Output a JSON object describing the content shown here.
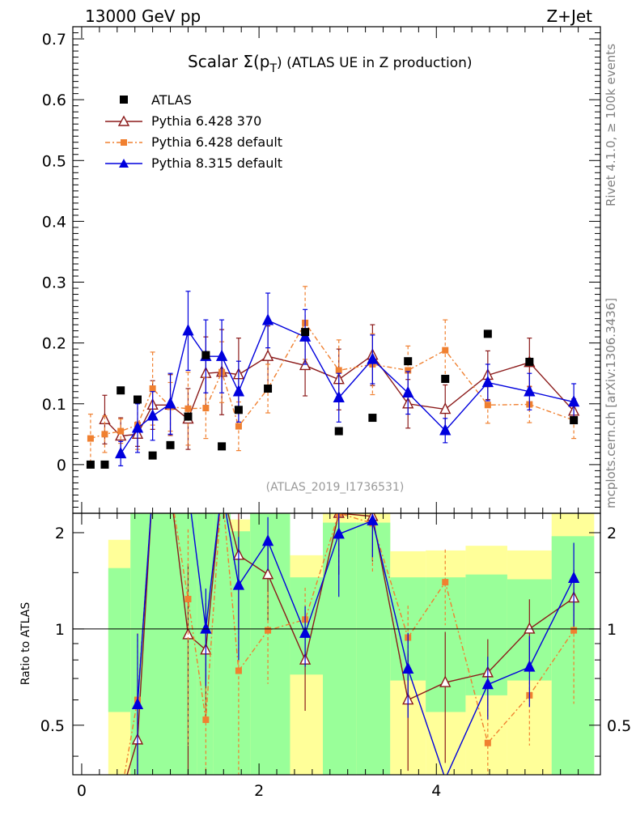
{
  "header": {
    "left": "13000 GeV pp",
    "right": "Z+Jet"
  },
  "side_labels": {
    "rivet": "Rivet 4.1.0, ≥ 100k events",
    "mcplots": "mcplots.cern.ch [arXiv:1306.3436]"
  },
  "chart_data": {
    "type": "line",
    "title": "Scalar Σ(p_T) (ATLAS UE in Z production)",
    "title_main": "Scalar Σ(p",
    "title_sub": "T",
    "title_rest": ") (ATLAS UE in Z production)",
    "analysis_id": "(ATLAS_2019_I1736531)",
    "ratio_ylabel": "Ratio to ATLAS",
    "xlim": [
      -0.1,
      5.85
    ],
    "ylim": [
      -0.08,
      0.72
    ],
    "ratio_ylim": [
      0.35,
      2.3
    ],
    "x_ticks": [
      "0",
      "2",
      "4"
    ],
    "y_ticks": [
      "0",
      "0.1",
      "0.2",
      "0.3",
      "0.4",
      "0.5",
      "0.6",
      "0.7"
    ],
    "ratio_ticks": [
      "0.5",
      "1",
      "2"
    ],
    "legend": [
      "ATLAS",
      "Pythia 6.428 370",
      "Pythia 6.428 default",
      "Pythia 8.315 default"
    ],
    "colors": {
      "atlas": "#000000",
      "p370": "#8b1a1a",
      "pdef": "#f08030",
      "p8": "#0000dd",
      "band_inner": "#99ff99",
      "band_outer": "#ffff99"
    },
    "x": [
      0.1,
      0.26,
      0.44,
      0.63,
      0.8,
      1.0,
      1.2,
      1.4,
      1.58,
      1.77,
      2.1,
      2.52,
      2.9,
      3.28,
      3.68,
      4.1,
      4.58,
      5.05,
      5.55
    ],
    "atlas": [
      0.0,
      0.0,
      0.122,
      0.107,
      0.015,
      0.032,
      0.079,
      0.18,
      0.03,
      0.09,
      0.125,
      0.218,
      0.055,
      0.077,
      0.17,
      0.141,
      0.215,
      0.169,
      0.073
    ],
    "series": [
      {
        "name": "Pythia 6.428 370",
        "key": "p370",
        "values": [
          null,
          0.074,
          0.047,
          0.05,
          0.098,
          0.098,
          0.075,
          0.15,
          0.152,
          0.148,
          0.178,
          0.163,
          0.14,
          0.18,
          0.1,
          0.091,
          0.147,
          0.168,
          0.088
        ],
        "errors": [
          null,
          0.04,
          0.03,
          0.02,
          0.04,
          0.05,
          0.05,
          0.06,
          0.07,
          0.06,
          0.05,
          0.05,
          0.05,
          0.05,
          0.04,
          0.04,
          0.04,
          0.04,
          0.02
        ],
        "ratio": [
          null,
          null,
          0.3,
          0.45,
          6.0,
          3.0,
          0.96,
          0.86,
          5.0,
          1.7,
          1.48,
          0.8,
          2.3,
          2.25,
          0.6,
          0.68,
          0.73,
          1.0,
          1.25
        ]
      },
      {
        "name": "Pythia 6.428 default",
        "key": "pdef",
        "values": [
          0.043,
          0.05,
          0.055,
          0.065,
          0.125,
          0.095,
          0.092,
          0.093,
          0.152,
          0.063,
          0.125,
          0.233,
          0.155,
          0.165,
          0.155,
          0.188,
          0.098,
          0.099,
          0.073
        ],
        "errors": [
          0.04,
          0.03,
          0.02,
          0.04,
          0.06,
          0.04,
          0.06,
          0.05,
          0.05,
          0.04,
          0.04,
          0.06,
          0.05,
          0.05,
          0.04,
          0.05,
          0.03,
          0.03,
          0.03
        ],
        "ratio": [
          null,
          null,
          0.3,
          0.6,
          6.0,
          3.0,
          1.24,
          0.52,
          5.0,
          0.74,
          0.99,
          1.07,
          2.3,
          2.14,
          0.94,
          1.4,
          0.44,
          0.62,
          0.99
        ]
      },
      {
        "name": "Pythia 8.315 default",
        "key": "p8",
        "values": [
          null,
          null,
          0.018,
          0.06,
          0.08,
          0.1,
          0.22,
          0.178,
          0.178,
          0.12,
          0.237,
          0.21,
          0.11,
          0.173,
          0.118,
          0.056,
          0.135,
          0.12,
          0.103
        ],
        "errors": [
          null,
          null,
          0.02,
          0.04,
          0.04,
          0.05,
          0.065,
          0.06,
          0.06,
          0.05,
          0.045,
          0.045,
          0.04,
          0.04,
          0.035,
          0.02,
          0.03,
          0.03,
          0.03
        ],
        "ratio": [
          null,
          null,
          null,
          0.58,
          6.0,
          3.0,
          6.0,
          1.0,
          6.0,
          1.37,
          1.88,
          0.97,
          1.98,
          2.18,
          0.75,
          0.34,
          0.67,
          0.76,
          1.44
        ]
      }
    ],
    "ratio_bands": [
      {
        "x0": 0.3,
        "x1": 0.55,
        "inner": [
          0.55,
          1.55
        ],
        "outer": [
          0.3,
          1.9
        ]
      },
      {
        "x0": 0.55,
        "x1": 1.3,
        "inner": [
          0.3,
          2.3
        ],
        "outer": [
          0.3,
          2.3
        ]
      },
      {
        "x0": 1.3,
        "x1": 1.48,
        "inner": [
          0.3,
          2.3
        ],
        "outer": [
          0.3,
          2.3
        ]
      },
      {
        "x0": 1.48,
        "x1": 1.68,
        "inner": [
          0.3,
          2.3
        ],
        "outer": [
          0.3,
          2.3
        ]
      },
      {
        "x0": 1.68,
        "x1": 1.9,
        "inner": [
          0.3,
          2.02
        ],
        "outer": [
          0.3,
          2.2
        ]
      },
      {
        "x0": 1.9,
        "x1": 2.35,
        "inner": [
          0.3,
          2.3
        ],
        "outer": [
          0.3,
          2.3
        ]
      },
      {
        "x0": 2.35,
        "x1": 2.72,
        "inner": [
          0.72,
          1.45
        ],
        "outer": [
          0.3,
          1.7
        ]
      },
      {
        "x0": 2.72,
        "x1": 3.1,
        "inner": [
          0.3,
          2.15
        ],
        "outer": [
          0.3,
          2.3
        ]
      },
      {
        "x0": 3.1,
        "x1": 3.48,
        "inner": [
          0.3,
          2.15
        ],
        "outer": [
          0.3,
          2.3
        ]
      },
      {
        "x0": 3.48,
        "x1": 3.88,
        "inner": [
          0.69,
          1.45
        ],
        "outer": [
          0.3,
          1.75
        ]
      },
      {
        "x0": 3.88,
        "x1": 4.33,
        "inner": [
          0.55,
          1.45
        ],
        "outer": [
          0.3,
          1.76
        ]
      },
      {
        "x0": 4.33,
        "x1": 4.8,
        "inner": [
          0.62,
          1.48
        ],
        "outer": [
          0.3,
          1.82
        ]
      },
      {
        "x0": 4.8,
        "x1": 5.3,
        "inner": [
          0.69,
          1.43
        ],
        "outer": [
          0.3,
          1.76
        ]
      },
      {
        "x0": 5.3,
        "x1": 5.78,
        "inner": [
          0.3,
          1.95
        ],
        "outer": [
          0.3,
          2.3
        ]
      }
    ]
  }
}
